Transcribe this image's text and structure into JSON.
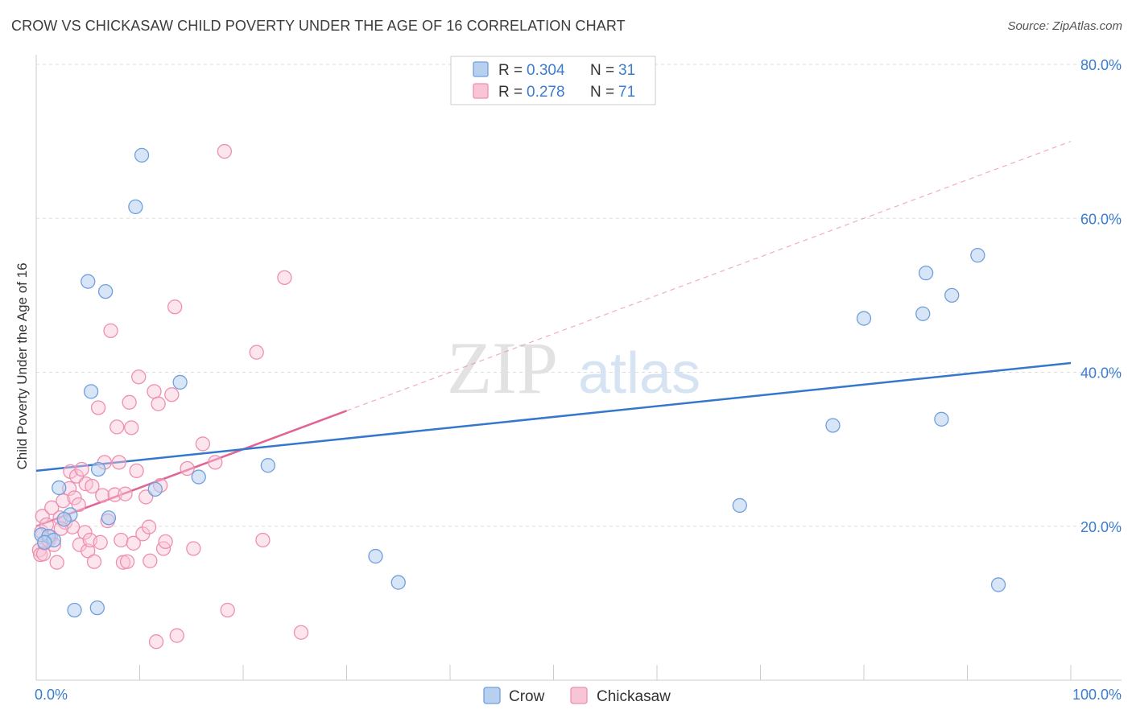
{
  "title": "CROW VS CHICKASAW CHILD POVERTY UNDER THE AGE OF 16 CORRELATION CHART",
  "source": "Source: ZipAtlas.com",
  "watermark": {
    "zip": "ZIP",
    "atlas": "atlas"
  },
  "colors": {
    "crow": "#6fa0dc",
    "crow_fill": "#b8d0f0",
    "crow_line": "#3577cc",
    "chickasaw": "#ee8fb0",
    "chickasaw_fill": "#f8c5d6",
    "chickasaw_line": "#e06595",
    "value_text": "#3a7cd0",
    "grid": "#dddddd"
  },
  "legend_box": {
    "rows": [
      {
        "series": "crow",
        "r_label": "R = ",
        "r_value": "0.304",
        "n_label": "N = ",
        "n_value": "31"
      },
      {
        "series": "chickasaw",
        "r_label": "R = ",
        "r_value": "0.278",
        "n_label": "N = ",
        "n_value": "71"
      }
    ]
  },
  "chart_data": {
    "type": "scatter",
    "title": "CROW VS CHICKASAW CHILD POVERTY UNDER THE AGE OF 16 CORRELATION CHART",
    "xlabel": "",
    "ylabel": "Child Poverty Under the Age of 16",
    "xlim": [
      0,
      100
    ],
    "ylim": [
      0,
      80
    ],
    "x_tick_labels": [
      "0.0%",
      "100.0%"
    ],
    "y_tick_values": [
      20,
      40,
      60,
      80
    ],
    "y_tick_labels": [
      "20.0%",
      "40.0%",
      "60.0%",
      "80.0%"
    ],
    "legend_position": "bottom-center",
    "series": [
      {
        "name": "Crow",
        "key": "crow",
        "r": 0.304,
        "n": 31,
        "trend": {
          "x0": 0,
          "y0": 27.2,
          "x1": 100,
          "y1": 41.2
        },
        "points": [
          [
            0.5,
            18.9
          ],
          [
            1.2,
            18.7
          ],
          [
            1.7,
            18.2
          ],
          [
            2.2,
            25.0
          ],
          [
            3.3,
            21.5
          ],
          [
            2.7,
            20.9
          ],
          [
            3.7,
            9.1
          ],
          [
            5.0,
            51.8
          ],
          [
            5.3,
            37.5
          ],
          [
            5.9,
            9.4
          ],
          [
            6.0,
            27.4
          ],
          [
            6.7,
            50.5
          ],
          [
            7.0,
            21.1
          ],
          [
            9.6,
            61.5
          ],
          [
            10.2,
            68.2
          ],
          [
            11.5,
            24.8
          ],
          [
            13.9,
            38.7
          ],
          [
            15.7,
            26.4
          ],
          [
            22.4,
            27.9
          ],
          [
            32.8,
            16.1
          ],
          [
            35.0,
            12.7
          ],
          [
            68.0,
            22.7
          ],
          [
            77.0,
            33.1
          ],
          [
            80.0,
            47.0
          ],
          [
            85.7,
            47.6
          ],
          [
            86.0,
            52.9
          ],
          [
            87.5,
            33.9
          ],
          [
            88.5,
            50.0
          ],
          [
            91.0,
            55.2
          ],
          [
            93.0,
            12.4
          ],
          [
            0.8,
            17.9
          ]
        ]
      },
      {
        "name": "Chickasaw",
        "key": "chickasaw",
        "r": 0.278,
        "n": 71,
        "trend": {
          "x0": 0,
          "y0": 20.0,
          "x1": 30,
          "y1": 35.0
        },
        "trend_dashed": {
          "x0": 30,
          "y0": 35.0,
          "x1": 100,
          "y1": 70.0
        },
        "points": [
          [
            0.3,
            16.9
          ],
          [
            0.4,
            16.3
          ],
          [
            0.5,
            19.3
          ],
          [
            0.6,
            21.3
          ],
          [
            0.8,
            17.8
          ],
          [
            1.0,
            20.2
          ],
          [
            1.2,
            18.2
          ],
          [
            1.4,
            18.6
          ],
          [
            1.5,
            22.4
          ],
          [
            1.7,
            17.6
          ],
          [
            2.0,
            15.3
          ],
          [
            2.3,
            21.1
          ],
          [
            2.6,
            23.3
          ],
          [
            2.8,
            20.5
          ],
          [
            3.2,
            24.9
          ],
          [
            3.3,
            27.1
          ],
          [
            3.5,
            19.9
          ],
          [
            3.7,
            23.7
          ],
          [
            3.9,
            26.5
          ],
          [
            4.1,
            22.8
          ],
          [
            4.2,
            17.6
          ],
          [
            4.4,
            27.4
          ],
          [
            4.7,
            19.2
          ],
          [
            4.8,
            25.5
          ],
          [
            5.0,
            16.8
          ],
          [
            5.2,
            18.2
          ],
          [
            5.4,
            25.2
          ],
          [
            5.6,
            15.4
          ],
          [
            6.0,
            35.4
          ],
          [
            6.2,
            17.9
          ],
          [
            6.4,
            24.0
          ],
          [
            6.6,
            28.3
          ],
          [
            6.9,
            20.7
          ],
          [
            7.2,
            45.4
          ],
          [
            7.6,
            24.1
          ],
          [
            7.8,
            32.9
          ],
          [
            8.0,
            28.3
          ],
          [
            8.2,
            18.2
          ],
          [
            8.4,
            15.3
          ],
          [
            8.6,
            24.2
          ],
          [
            8.8,
            15.4
          ],
          [
            9.0,
            36.1
          ],
          [
            9.2,
            32.8
          ],
          [
            9.4,
            17.8
          ],
          [
            9.7,
            27.2
          ],
          [
            9.9,
            39.4
          ],
          [
            10.3,
            19.0
          ],
          [
            10.6,
            23.8
          ],
          [
            10.9,
            19.9
          ],
          [
            11.0,
            15.5
          ],
          [
            11.4,
            37.5
          ],
          [
            11.6,
            5.0
          ],
          [
            11.8,
            35.9
          ],
          [
            12.0,
            25.3
          ],
          [
            12.3,
            17.1
          ],
          [
            12.5,
            18.0
          ],
          [
            13.1,
            37.1
          ],
          [
            13.4,
            48.5
          ],
          [
            13.6,
            5.8
          ],
          [
            14.6,
            27.5
          ],
          [
            15.2,
            17.1
          ],
          [
            16.1,
            30.7
          ],
          [
            17.3,
            28.3
          ],
          [
            18.2,
            68.7
          ],
          [
            18.5,
            9.1
          ],
          [
            21.3,
            42.6
          ],
          [
            21.9,
            18.2
          ],
          [
            24.0,
            52.3
          ],
          [
            25.6,
            6.2
          ],
          [
            0.7,
            16.4
          ],
          [
            2.4,
            19.7
          ]
        ]
      }
    ]
  },
  "bottom_legend": [
    {
      "series": "crow",
      "label": "Crow"
    },
    {
      "series": "chickasaw",
      "label": "Chickasaw"
    }
  ]
}
